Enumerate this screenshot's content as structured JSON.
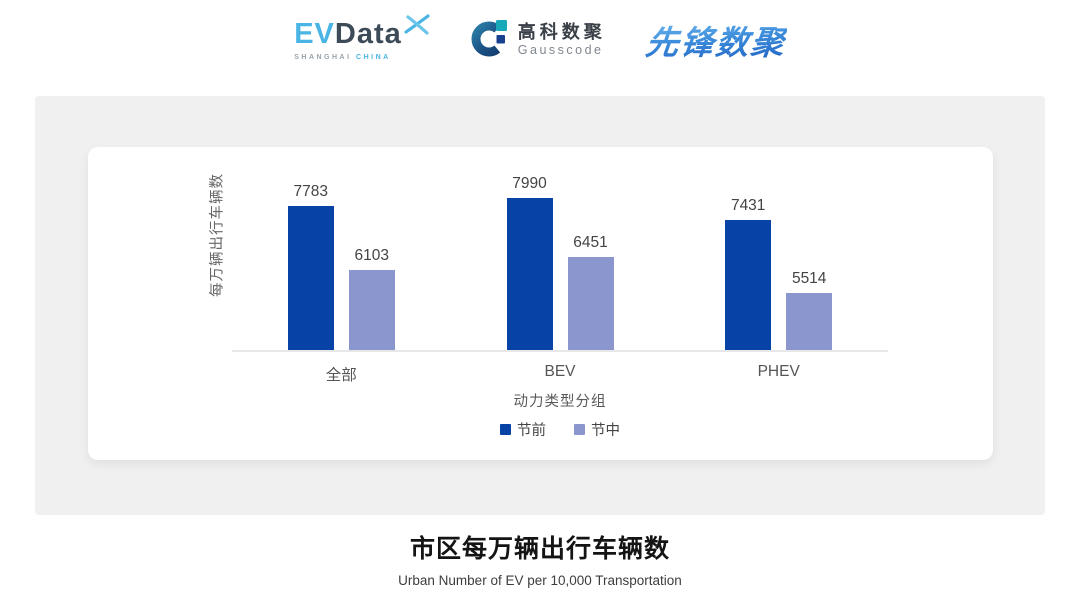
{
  "header": {
    "evdata_logo": {
      "ev": "EV",
      "data": "Data",
      "sub_left": "SHANGHAI",
      "sub_right": "CHINA"
    },
    "gausscode_logo": {
      "cn": "高科数聚",
      "en": "Gausscode"
    },
    "pioneer_logo": {
      "text": "先锋数聚"
    }
  },
  "chart_data": {
    "type": "bar",
    "categories": [
      "全部",
      "BEV",
      "PHEV"
    ],
    "series": [
      {
        "name": "节前",
        "color": "#0742a6",
        "values": [
          7783,
          7990,
          7431
        ]
      },
      {
        "name": "节中",
        "color": "#8b96ce",
        "values": [
          6103,
          6451,
          5514
        ]
      }
    ],
    "xlabel": "动力类型分组",
    "ylabel": "每万辆出行车辆数",
    "ylim": [
      4000,
      9000
    ],
    "grid": false,
    "value_labels": true,
    "legend_position": "bottom"
  },
  "footer": {
    "title": "市区每万辆出行车辆数",
    "subtitle": "Urban Number of EV per 10,000 Transportation"
  },
  "colors": {
    "series_pre_holiday": "#0742a6",
    "series_mid_holiday": "#8b96ce",
    "panel_bg": "#f0f0f0",
    "card_bg": "#ffffff",
    "axis_line": "#e7e7e7",
    "evdata_blue": "#4ab5e5",
    "evdata_dark": "#3d4a57",
    "gauss_teal": "#18a9b9",
    "gauss_navy": "#17418f",
    "pioneer_blue": "#2f7ad0"
  }
}
